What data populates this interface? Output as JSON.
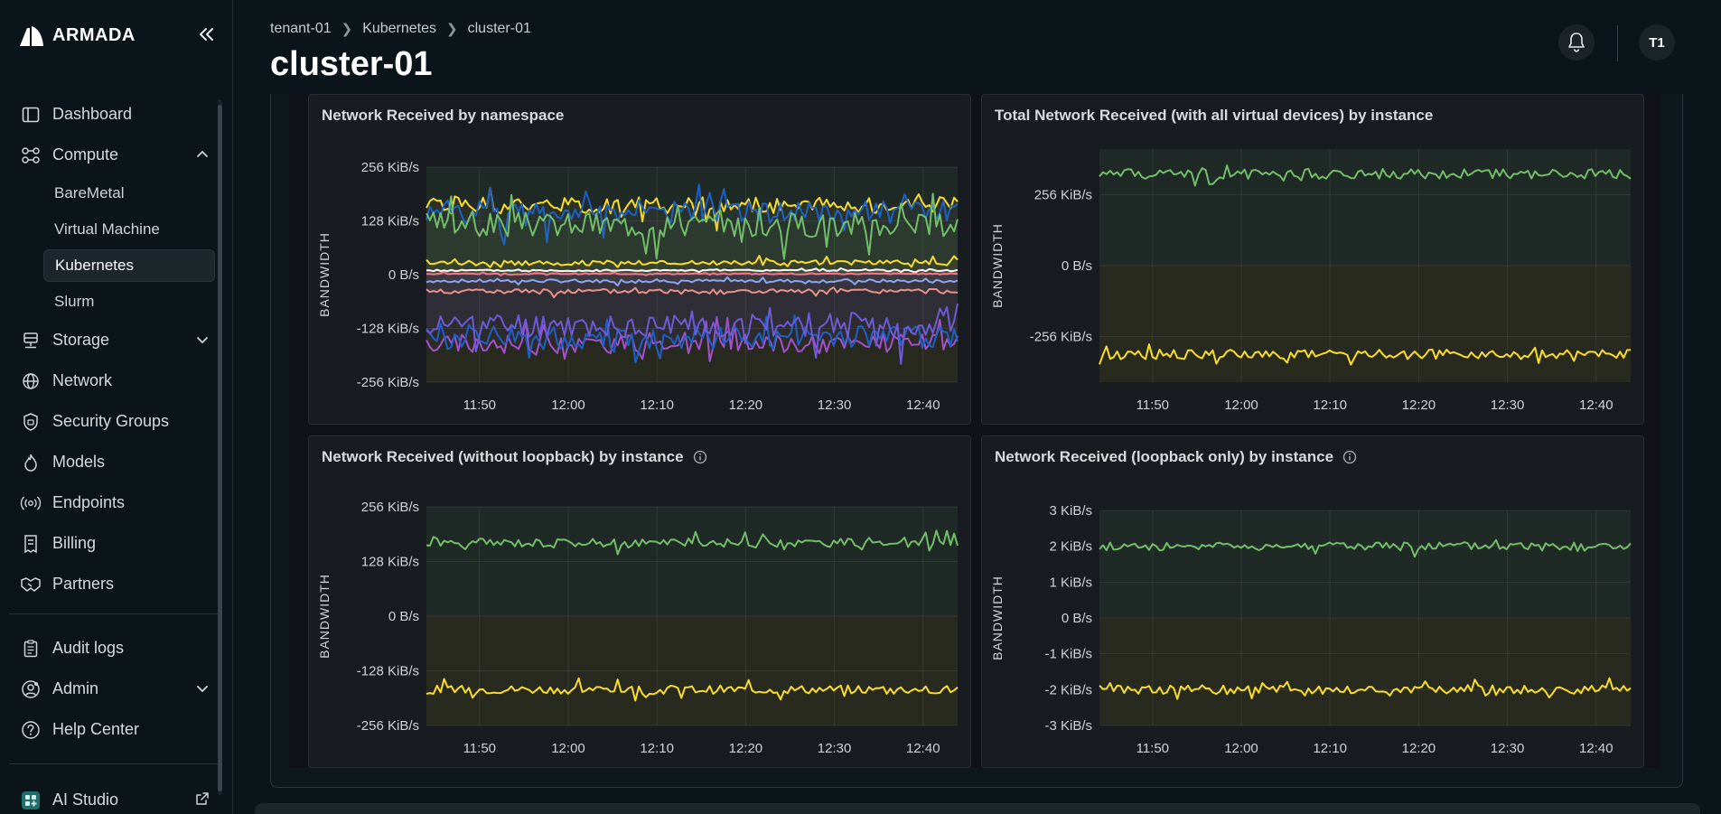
{
  "brand": {
    "name": "ARMADA"
  },
  "sidebar": {
    "items": [
      {
        "label": "Dashboard",
        "icon": "dashboard-icon"
      },
      {
        "label": "Compute",
        "icon": "compute-icon",
        "expanded": true,
        "children": [
          {
            "label": "BareMetal"
          },
          {
            "label": "Virtual Machine"
          },
          {
            "label": "Kubernetes",
            "active": true
          },
          {
            "label": "Slurm"
          }
        ]
      },
      {
        "label": "Storage",
        "icon": "storage-icon",
        "expanded": false
      },
      {
        "label": "Network",
        "icon": "globe-icon"
      },
      {
        "label": "Security Groups",
        "icon": "shield-icon"
      },
      {
        "label": "Models",
        "icon": "flame-icon"
      },
      {
        "label": "Endpoints",
        "icon": "broadcast-icon"
      },
      {
        "label": "Billing",
        "icon": "receipt-icon"
      },
      {
        "label": "Partners",
        "icon": "handshake-icon"
      }
    ],
    "secondary": [
      {
        "label": "Audit logs",
        "icon": "clipboard-icon"
      },
      {
        "label": "Admin",
        "icon": "user-gear-icon"
      },
      {
        "label": "Help Center",
        "icon": "help-icon"
      }
    ],
    "footer": {
      "label": "AI Studio",
      "icon": "ai-studio-icon"
    }
  },
  "header": {
    "breadcrumb": [
      "tenant-01",
      "Kubernetes",
      "cluster-01"
    ],
    "title": "cluster-01",
    "avatar_initials": "T1"
  },
  "colors": {
    "green": "#73bf69",
    "yellow": "#fade2a",
    "blue": "#1f60c4",
    "purple": "#a352cc",
    "salmon": "#ff9e80",
    "lightblue": "#8ab8ff"
  },
  "panels": [
    {
      "title": "Network Received by namespace",
      "info": false
    },
    {
      "title": "Total Network Received (with all virtual devices) by instance",
      "info": false
    },
    {
      "title": "Network Received (without loopback) by instance",
      "info": true
    },
    {
      "title": "Network Received (loopback only) by instance",
      "info": true
    }
  ],
  "chart_data": [
    {
      "type": "line",
      "title": "Network Received by namespace",
      "ylabel": "BANDWIDTH",
      "x_ticks": [
        "11:50",
        "12:00",
        "12:10",
        "12:20",
        "12:30",
        "12:40"
      ],
      "y_ticks": [
        "256 KiB/s",
        "128 KiB/s",
        "0 B/s",
        "-128 KiB/s",
        "-256 KiB/s"
      ],
      "ylim": [
        -256,
        256
      ],
      "unit": "KiB/s",
      "series": [
        {
          "color": "#fade2a",
          "base": 165,
          "amp": 40,
          "seed": 1
        },
        {
          "color": "#1f60c4",
          "base": 150,
          "amp": 55,
          "seed": 2
        },
        {
          "color": "#73bf69",
          "base": 120,
          "amp": 60,
          "seed": 3
        },
        {
          "color": "#fade2a",
          "base": 28,
          "amp": 12,
          "seed": 4
        },
        {
          "color": "#ffffff",
          "base": 10,
          "amp": 4,
          "seed": 5
        },
        {
          "color": "#ff7383",
          "base": 2,
          "amp": 3,
          "seed": 6
        },
        {
          "color": "#8ab8ff",
          "base": -15,
          "amp": 8,
          "seed": 7
        },
        {
          "color": "#ff9e80",
          "base": -40,
          "amp": 12,
          "seed": 8
        },
        {
          "color": "#a352cc",
          "base": -165,
          "amp": 45,
          "seed": 9
        },
        {
          "color": "#1f60c4",
          "base": -150,
          "amp": 55,
          "seed": 10
        },
        {
          "color": "#6e5bd6",
          "base": -120,
          "amp": 60,
          "seed": 11
        }
      ]
    },
    {
      "type": "line",
      "title": "Total Network Received (with all virtual devices) by instance",
      "ylabel": "BANDWIDTH",
      "x_ticks": [
        "11:50",
        "12:00",
        "12:10",
        "12:20",
        "12:30",
        "12:40"
      ],
      "y_ticks": [
        "256 KiB/s",
        "0 B/s",
        "-256 KiB/s"
      ],
      "ylim": [
        -420,
        420
      ],
      "unit": "KiB/s",
      "series": [
        {
          "color": "#73bf69",
          "base": 330,
          "amp": 35,
          "seed": 21
        },
        {
          "color": "#fade2a",
          "base": -320,
          "amp": 35,
          "seed": 22
        }
      ]
    },
    {
      "type": "line",
      "title": "Network Received (without loopback) by instance",
      "ylabel": "BANDWIDTH",
      "x_ticks": [
        "11:50",
        "12:00",
        "12:10",
        "12:20",
        "12:30",
        "12:40"
      ],
      "y_ticks": [
        "256 KiB/s",
        "128 KiB/s",
        "0 B/s",
        "-128 KiB/s",
        "-256 KiB/s"
      ],
      "ylim": [
        -256,
        256
      ],
      "unit": "KiB/s",
      "series": [
        {
          "color": "#73bf69",
          "base": 172,
          "amp": 20,
          "seed": 31
        },
        {
          "color": "#fade2a",
          "base": -172,
          "amp": 20,
          "seed": 32
        }
      ]
    },
    {
      "type": "line",
      "title": "Network Received (loopback only) by instance",
      "ylabel": "BANDWIDTH",
      "x_ticks": [
        "11:50",
        "12:00",
        "12:10",
        "12:20",
        "12:30",
        "12:40"
      ],
      "y_ticks": [
        "3 KiB/s",
        "2 KiB/s",
        "1 KiB/s",
        "0 B/s",
        "-1 KiB/s",
        "-2 KiB/s",
        "-3 KiB/s"
      ],
      "ylim": [
        -3,
        3
      ],
      "unit": "KiB/s",
      "series": [
        {
          "color": "#73bf69",
          "base": 2.0,
          "amp": 0.25,
          "seed": 41
        },
        {
          "color": "#fade2a",
          "base": -2.0,
          "amp": 0.25,
          "seed": 42
        }
      ]
    }
  ]
}
